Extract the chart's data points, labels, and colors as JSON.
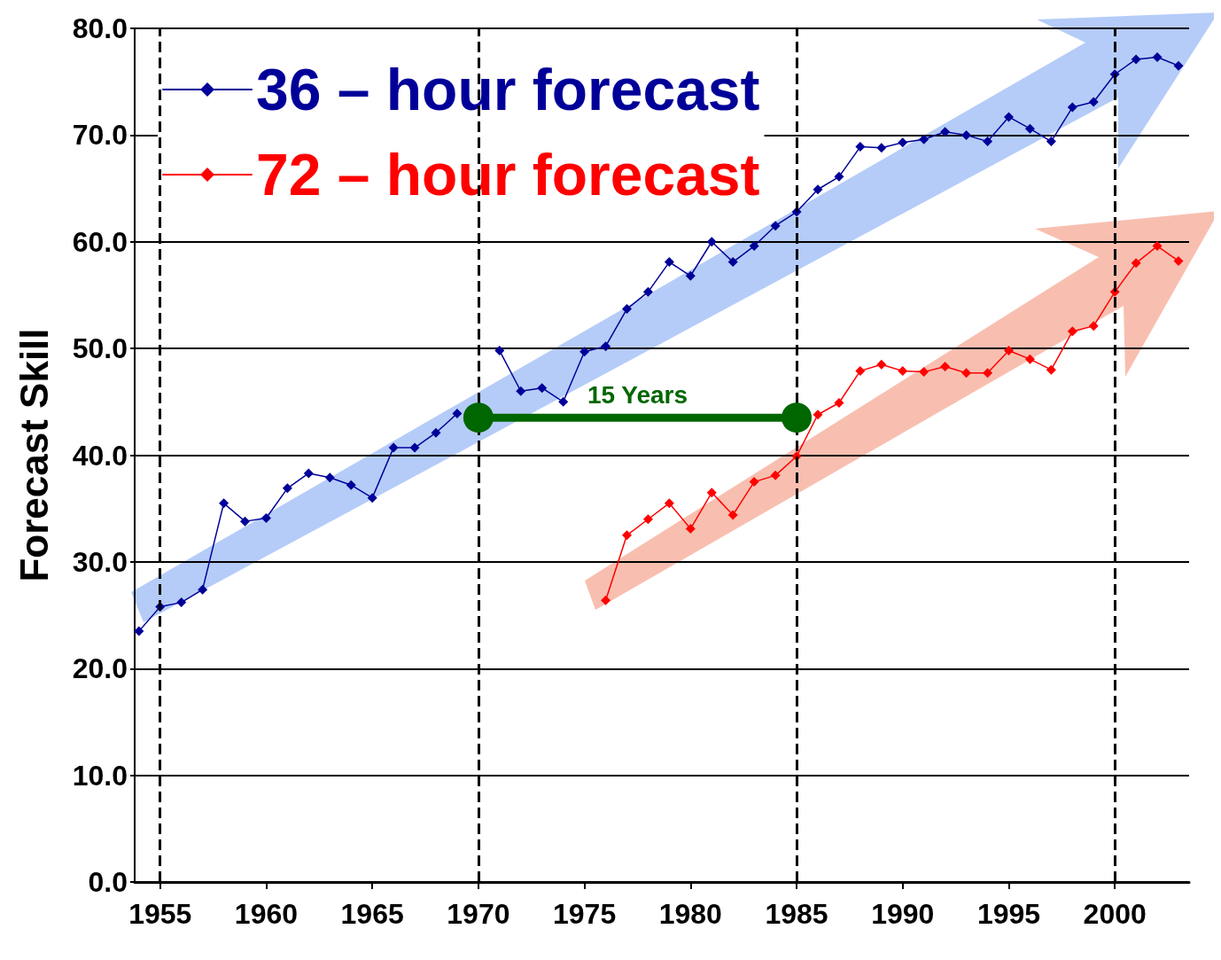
{
  "chart_data": {
    "type": "line",
    "ylabel": "Forecast Skill",
    "x": [
      1954,
      1955,
      1956,
      1957,
      1958,
      1959,
      1960,
      1961,
      1962,
      1963,
      1964,
      1965,
      1966,
      1967,
      1968,
      1969,
      1970,
      1971,
      1972,
      1973,
      1974,
      1975,
      1976,
      1977,
      1978,
      1979,
      1980,
      1981,
      1982,
      1983,
      1984,
      1985,
      1986,
      1987,
      1988,
      1989,
      1990,
      1991,
      1992,
      1993,
      1994,
      1995,
      1996,
      1997,
      1998,
      1999,
      2000,
      2001,
      2002,
      2003
    ],
    "series": [
      {
        "name": "36 – hour forecast",
        "color": "#000099",
        "values": [
          23.5,
          25.8,
          26.2,
          27.4,
          35.5,
          33.8,
          34.1,
          36.9,
          38.3,
          37.9,
          37.2,
          36.0,
          40.7,
          40.7,
          42.1,
          43.9,
          null,
          49.8,
          46.0,
          46.3,
          45.0,
          49.7,
          50.2,
          53.7,
          55.3,
          58.1,
          56.8,
          60.0,
          58.1,
          59.6,
          61.5,
          62.8,
          64.9,
          66.1,
          68.9,
          68.8,
          69.3,
          69.6,
          70.3,
          70.0,
          69.4,
          71.7,
          70.6,
          69.4,
          72.6,
          73.1,
          75.7,
          77.1,
          77.3,
          76.5
        ]
      },
      {
        "name": "72 – hour forecast",
        "color": "#ff0000",
        "values": [
          null,
          null,
          null,
          null,
          null,
          null,
          null,
          null,
          null,
          null,
          null,
          null,
          null,
          null,
          null,
          null,
          null,
          null,
          null,
          null,
          null,
          null,
          26.4,
          32.5,
          34.0,
          35.5,
          33.1,
          36.5,
          34.4,
          37.5,
          38.1,
          39.9,
          43.8,
          44.9,
          47.9,
          48.5,
          47.9,
          47.8,
          48.3,
          47.7,
          47.7,
          49.8,
          49.0,
          48.0,
          51.6,
          52.1,
          55.3,
          58.0,
          59.6,
          58.2
        ]
      }
    ],
    "xlim": [
      1953.8,
      2003.5
    ],
    "xticks": [
      1955,
      1960,
      1965,
      1970,
      1975,
      1980,
      1985,
      1990,
      1995,
      2000
    ],
    "ylim": [
      0,
      80
    ],
    "yticks": [
      {
        "value": 0,
        "label": "0.0"
      },
      {
        "value": 10,
        "label": "10.0"
      },
      {
        "value": 20,
        "label": "20.0"
      },
      {
        "value": 30,
        "label": "30.0"
      },
      {
        "value": 40,
        "label": "40.0"
      },
      {
        "value": 50,
        "label": "50.0"
      },
      {
        "value": 60,
        "label": "60.0"
      },
      {
        "value": 70,
        "label": "70.0"
      },
      {
        "value": 80,
        "label": "80.0"
      }
    ],
    "ref_lines": [
      {
        "axis": "x",
        "value": 1955,
        "color": "#000000",
        "line_style": "dashed"
      },
      {
        "axis": "x",
        "value": 1970,
        "color": "#000000",
        "line_style": "dashed"
      },
      {
        "axis": "x",
        "value": 1985,
        "color": "#000000",
        "line_style": "dashed"
      },
      {
        "axis": "x",
        "value": 2000,
        "color": "#000000",
        "line_style": "dashed"
      }
    ],
    "annotations": [
      "15 Years"
    ],
    "grid": "y",
    "legend": "top left",
    "marker": "diamond",
    "line_style": "solid"
  }
}
